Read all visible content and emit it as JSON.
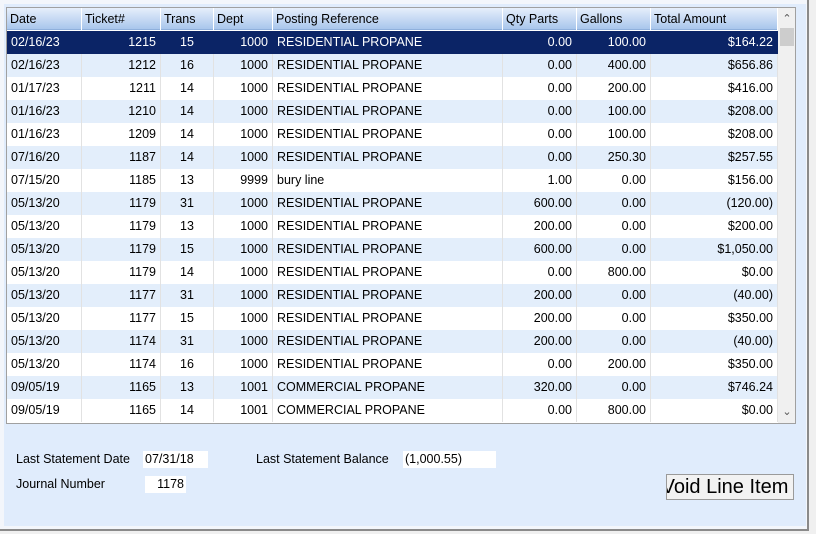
{
  "columns": [
    "Date",
    "Ticket#",
    "Trans",
    "Dept",
    "Posting Reference",
    "Qty Parts",
    "Gallons",
    "Total Amount"
  ],
  "rows": [
    [
      "02/16/23",
      "1215",
      "15",
      "1000",
      "RESIDENTIAL PROPANE",
      "0.00",
      "100.00",
      "$164.22"
    ],
    [
      "02/16/23",
      "1212",
      "16",
      "1000",
      "RESIDENTIAL PROPANE",
      "0.00",
      "400.00",
      "$656.86"
    ],
    [
      "01/17/23",
      "1211",
      "14",
      "1000",
      "RESIDENTIAL PROPANE",
      "0.00",
      "200.00",
      "$416.00"
    ],
    [
      "01/16/23",
      "1210",
      "14",
      "1000",
      "RESIDENTIAL PROPANE",
      "0.00",
      "100.00",
      "$208.00"
    ],
    [
      "01/16/23",
      "1209",
      "14",
      "1000",
      "RESIDENTIAL PROPANE",
      "0.00",
      "100.00",
      "$208.00"
    ],
    [
      "07/16/20",
      "1187",
      "14",
      "1000",
      "RESIDENTIAL PROPANE",
      "0.00",
      "250.30",
      "$257.55"
    ],
    [
      "07/15/20",
      "1185",
      "13",
      "9999",
      "bury line",
      "1.00",
      "0.00",
      "$156.00"
    ],
    [
      "05/13/20",
      "1179",
      "31",
      "1000",
      "RESIDENTIAL PROPANE",
      "600.00",
      "0.00",
      "(120.00)"
    ],
    [
      "05/13/20",
      "1179",
      "13",
      "1000",
      "RESIDENTIAL PROPANE",
      "200.00",
      "0.00",
      "$200.00"
    ],
    [
      "05/13/20",
      "1179",
      "15",
      "1000",
      "RESIDENTIAL PROPANE",
      "600.00",
      "0.00",
      "$1,050.00"
    ],
    [
      "05/13/20",
      "1179",
      "14",
      "1000",
      "RESIDENTIAL PROPANE",
      "0.00",
      "800.00",
      "$0.00"
    ],
    [
      "05/13/20",
      "1177",
      "31",
      "1000",
      "RESIDENTIAL PROPANE",
      "200.00",
      "0.00",
      "(40.00)"
    ],
    [
      "05/13/20",
      "1177",
      "15",
      "1000",
      "RESIDENTIAL PROPANE",
      "200.00",
      "0.00",
      "$350.00"
    ],
    [
      "05/13/20",
      "1174",
      "31",
      "1000",
      "RESIDENTIAL PROPANE",
      "200.00",
      "0.00",
      "(40.00)"
    ],
    [
      "05/13/20",
      "1174",
      "16",
      "1000",
      "RESIDENTIAL PROPANE",
      "0.00",
      "200.00",
      "$350.00"
    ],
    [
      "09/05/19",
      "1165",
      "13",
      "1001",
      "COMMERCIAL PROPANE",
      "320.00",
      "0.00",
      "$746.24"
    ],
    [
      "09/05/19",
      "1165",
      "14",
      "1001",
      "COMMERCIAL PROPANE",
      "0.00",
      "800.00",
      "$0.00"
    ]
  ],
  "selected_row": 0,
  "footer": {
    "last_statement_date_label": "Last Statement Date",
    "last_statement_date": "07/31/18",
    "last_statement_balance_label": "Last Statement Balance",
    "last_statement_balance": "(1,000.55)",
    "journal_number_label": "Journal Number",
    "journal_number": "1178",
    "void_button": "Void Line Item"
  },
  "colors": {
    "selected": "#0b2466",
    "alt_row": "#e3eefb",
    "panel": "#e0ecfc"
  }
}
